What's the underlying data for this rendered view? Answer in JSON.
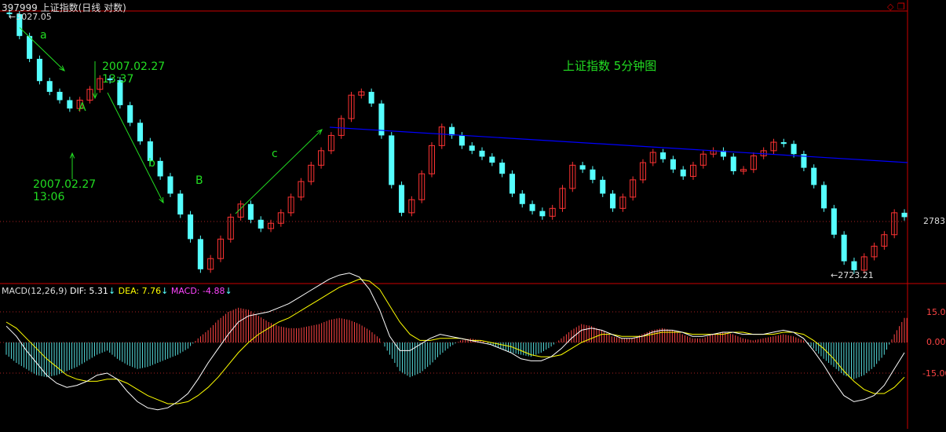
{
  "header": {
    "title": "397999 上证指数(日线 对数)",
    "corner_icons": [
      "diamond-icon",
      "restore-window-icon"
    ]
  },
  "colors": {
    "background": "#000000",
    "up": "#ff3333",
    "down": "#55ffff",
    "frame": "#cc0000",
    "annotation": "#22dd22",
    "trendline": "#0000ff",
    "dif": "#ffffff",
    "dea": "#ffff00",
    "macd_label": "#ff44ff"
  },
  "annotations": {
    "chart_title": "上证指数 5分钟图",
    "label_a": "a",
    "label_b": "b",
    "label_c": "c",
    "label_A": "A",
    "label_B": "B",
    "time1": "2007.02.27\n13:06",
    "time2": "2007.02.27\n13:37"
  },
  "chart_data": {
    "type": "candlestick",
    "price_axis": {
      "scale": "log",
      "current_label": "2783"
    },
    "high_label": "3027.05",
    "low_label": "2723.21",
    "price_series": [
      3027,
      3000,
      2972,
      2945,
      2932,
      2922,
      2912,
      2922,
      2935,
      2948,
      2946,
      2916,
      2895,
      2873,
      2850,
      2832,
      2812,
      2788,
      2760,
      2726,
      2738,
      2760,
      2785,
      2800,
      2782,
      2772,
      2778,
      2790,
      2808,
      2826,
      2845,
      2862,
      2880,
      2900,
      2928,
      2932,
      2918,
      2880,
      2822,
      2790,
      2805,
      2835,
      2868,
      2890,
      2880,
      2868,
      2862,
      2855,
      2848,
      2835,
      2812,
      2800,
      2792,
      2786,
      2795,
      2818,
      2845,
      2840,
      2828,
      2812,
      2795,
      2808,
      2828,
      2848,
      2860,
      2852,
      2840,
      2832,
      2845,
      2858,
      2862,
      2855,
      2838,
      2840,
      2856,
      2862,
      2872,
      2870,
      2858,
      2842,
      2822,
      2795,
      2765,
      2735,
      2725,
      2740,
      2752,
      2765,
      2790,
      2785
    ],
    "macd": {
      "params": "MACD(12,26,9)",
      "dif_label": "DIF: 5.31",
      "dea_label": "DEA: 7.76",
      "macd_label": "MACD: -4.88",
      "axis_ticks": [
        "15.00",
        "0.00",
        "-15.00"
      ],
      "histogram": [
        -6,
        -10,
        -13,
        -16,
        -17,
        -16,
        -14,
        -12,
        -9,
        -6,
        -4,
        -8,
        -11,
        -13,
        -12,
        -10,
        -8,
        -6,
        -3,
        2,
        6,
        11,
        15,
        17,
        16,
        13,
        10,
        8,
        7,
        7,
        8,
        9,
        11,
        12,
        11,
        9,
        6,
        2,
        -6,
        -14,
        -17,
        -15,
        -11,
        -6,
        -2,
        1,
        2,
        1,
        -1,
        -3,
        -5,
        -6,
        -7,
        -5,
        -2,
        2,
        6,
        9,
        8,
        6,
        3,
        2,
        2,
        4,
        6,
        7,
        6,
        4,
        2,
        2,
        4,
        5,
        4,
        2,
        1,
        2,
        3,
        4,
        3,
        1,
        -3,
        -8,
        -12,
        -16,
        -18,
        -16,
        -12,
        -6,
        4,
        12
      ],
      "dif": [
        8,
        3,
        -4,
        -10,
        -16,
        -20,
        -22,
        -21,
        -19,
        -16,
        -15,
        -18,
        -24,
        -29,
        -32,
        -33,
        -32,
        -29,
        -25,
        -18,
        -10,
        -3,
        4,
        10,
        13,
        14,
        15,
        17,
        19,
        22,
        25,
        28,
        31,
        33,
        34,
        32,
        26,
        16,
        3,
        -4,
        -4,
        -1,
        2,
        4,
        3,
        2,
        1,
        0,
        -1,
        -3,
        -5,
        -8,
        -9,
        -9,
        -7,
        -3,
        2,
        6,
        7,
        6,
        4,
        2,
        2,
        3,
        5,
        6,
        6,
        5,
        3,
        3,
        4,
        5,
        5,
        4,
        4,
        4,
        5,
        6,
        5,
        2,
        -4,
        -11,
        -19,
        -26,
        -29,
        -28,
        -26,
        -21,
        -13,
        -5
      ],
      "dea": [
        10,
        7,
        2,
        -3,
        -8,
        -12,
        -16,
        -18,
        -19,
        -19,
        -18,
        -18,
        -20,
        -23,
        -26,
        -28,
        -30,
        -30,
        -29,
        -26,
        -22,
        -17,
        -11,
        -5,
        0,
        4,
        7,
        10,
        12,
        15,
        18,
        21,
        24,
        27,
        29,
        31,
        30,
        26,
        18,
        10,
        4,
        1,
        1,
        2,
        2,
        2,
        1,
        1,
        0,
        -1,
        -2,
        -4,
        -6,
        -7,
        -7,
        -6,
        -3,
        0,
        2,
        4,
        4,
        3,
        3,
        3,
        4,
        5,
        5,
        5,
        4,
        4,
        4,
        4,
        5,
        5,
        4,
        4,
        4,
        5,
        5,
        4,
        1,
        -3,
        -8,
        -14,
        -19,
        -23,
        -25,
        -25,
        -22,
        -17
      ]
    }
  }
}
